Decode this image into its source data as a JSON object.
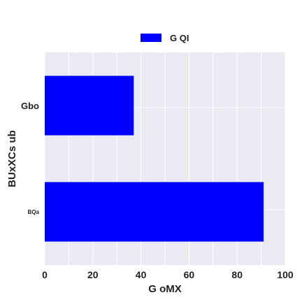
{
  "chart_data": {
    "type": "bar",
    "orientation": "horizontal",
    "categories": [
      "BQa",
      "Gbo"
    ],
    "series": [
      {
        "name": "G QI",
        "values": [
          91,
          37
        ],
        "color": "#0000ff"
      }
    ],
    "xlabel": "G oMX",
    "ylabel": "BUxXCs ub",
    "xlim": [
      0,
      100
    ],
    "xticks": [
      0,
      20,
      40,
      60,
      80,
      100
    ],
    "grid": true,
    "legend": "top-center",
    "background": "#eaeaf2"
  }
}
